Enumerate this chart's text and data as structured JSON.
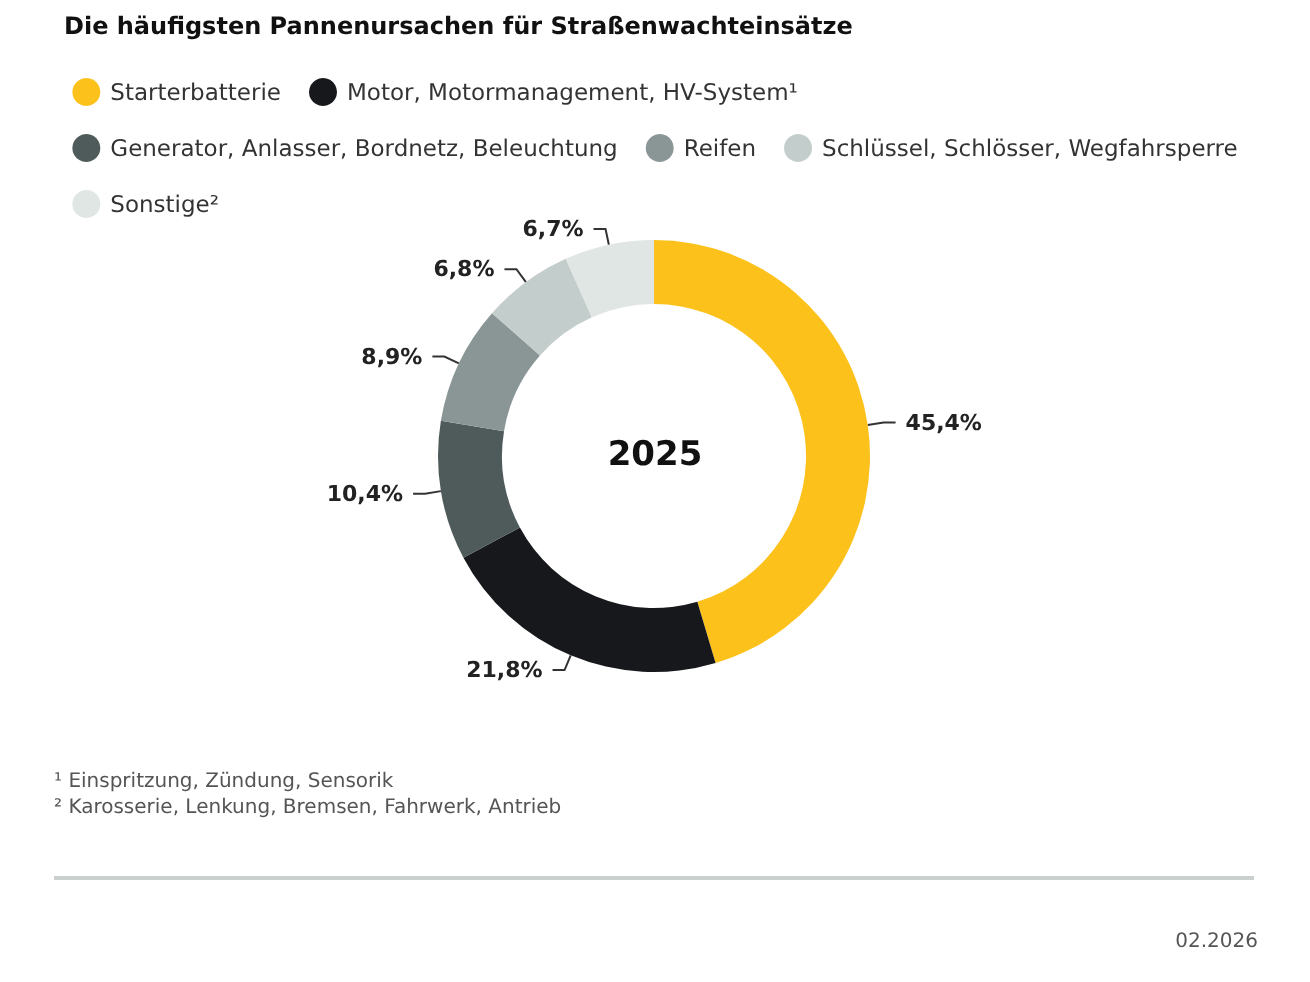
{
  "chart_data": {
    "type": "donut",
    "title": "Die häufigsten Pannenursachen für Straßenwachteinsätze",
    "subtitle": "2025",
    "categories": [
      "Starterbatterie",
      "Motor, Motormanagement, HV-System¹",
      "Generator, Anlasser, Bordnetz, Beleuchtung",
      "Reifen",
      "Schlüssel, Schlösser, Wegfahrsperre",
      "Sonstige²"
    ],
    "values": [
      45.4,
      21.8,
      10.4,
      8.9,
      6.8,
      6.7
    ],
    "value_labels": [
      "45,4%",
      "21,8%",
      "10,4%",
      "8,9%",
      "6,8%",
      "6,7%"
    ],
    "colors": [
      "#fcc21b",
      "#16181b",
      "#4f5a5a",
      "#8a9696",
      "#c3cdcb",
      "#e0e6e4"
    ],
    "legend": "top",
    "annotations": [
      "¹ Einspritzung, Zündung, Sensorik",
      "² Karosserie, Lenkung, Bremsen, Fahrwerk, Antrieb",
      "02.2026"
    ]
  }
}
